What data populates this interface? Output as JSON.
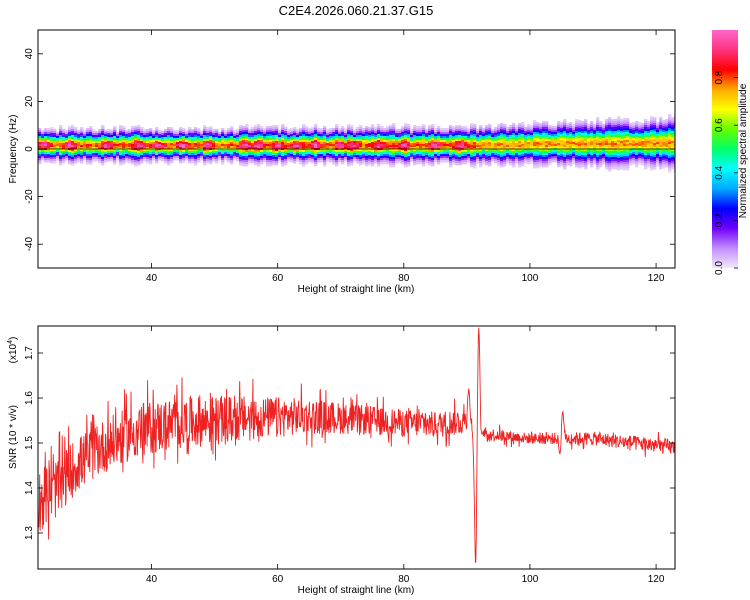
{
  "title": "C2E4.2026.060.21.37.G15",
  "chart_data": [
    {
      "type": "heatmap",
      "xlabel": "Height of straight line (km)",
      "ylabel": "Frequency (Hz)",
      "xlim": [
        22,
        123
      ],
      "ylim": [
        -50,
        50
      ],
      "xticks": [
        40,
        60,
        80,
        100,
        120
      ],
      "yticks": [
        -40,
        -20,
        0,
        20,
        40
      ],
      "grid": false,
      "band": {
        "center_hz": [
          [
            22,
            1.5
          ],
          [
            60,
            1.5
          ],
          [
            91,
            1.5
          ],
          [
            100,
            2.0
          ],
          [
            123,
            2.5
          ]
        ],
        "halfwidth_hz": [
          [
            22,
            4
          ],
          [
            50,
            4
          ],
          [
            91,
            4.5
          ],
          [
            100,
            5
          ],
          [
            123,
            6
          ]
        ]
      },
      "peak_heights_km": [
        23,
        27,
        33,
        38,
        41,
        45,
        49,
        55,
        57,
        60,
        63,
        66,
        70,
        72,
        76,
        80,
        85,
        89
      ],
      "colorbar": {
        "label": "Normalized spectral amplitude",
        "range": [
          0,
          1
        ],
        "ticks": [
          "0.0",
          "0.2",
          "0.4",
          "0.6",
          "0.8"
        ],
        "tick_values": [
          0,
          0.2,
          0.4,
          0.6,
          0.8
        ],
        "colors": [
          "#f2e8f8",
          "#c28cff",
          "#7000ff",
          "#0000ff",
          "#00aaff",
          "#00ffff",
          "#00ff66",
          "#66ff00",
          "#ffff00",
          "#ffaa00",
          "#ff0000",
          "#ff3380",
          "#ff66cc"
        ]
      }
    },
    {
      "type": "line",
      "xlabel": "Height of straight line (km)",
      "ylabel": "SNR (10 * v/v)",
      "scale_label": "(x10",
      "scale_exp": "4",
      "scale_close": ")",
      "xlim": [
        22,
        123
      ],
      "ylim": [
        1.22,
        1.76
      ],
      "xticks": [
        40,
        60,
        80,
        100,
        120
      ],
      "yticks": [
        1.3,
        1.4,
        1.5,
        1.6,
        1.7
      ],
      "series_color": "#ee2222",
      "grid": false,
      "trend": [
        [
          22,
          1.37
        ],
        [
          25,
          1.4
        ],
        [
          28,
          1.45
        ],
        [
          32,
          1.49
        ],
        [
          38,
          1.53
        ],
        [
          45,
          1.545
        ],
        [
          55,
          1.555
        ],
        [
          65,
          1.56
        ],
        [
          75,
          1.55
        ],
        [
          85,
          1.54
        ],
        [
          90,
          1.55
        ],
        [
          93,
          1.52
        ],
        [
          100,
          1.51
        ],
        [
          110,
          1.51
        ],
        [
          123,
          1.49
        ]
      ],
      "spread": [
        [
          22,
          0.07
        ],
        [
          30,
          0.06
        ],
        [
          40,
          0.06
        ],
        [
          50,
          0.055
        ],
        [
          60,
          0.045
        ],
        [
          70,
          0.035
        ],
        [
          80,
          0.03
        ],
        [
          90,
          0.03
        ],
        [
          92,
          0.015
        ],
        [
          100,
          0.012
        ],
        [
          110,
          0.015
        ],
        [
          123,
          0.018
        ]
      ],
      "events": [
        {
          "x": 90.3,
          "y": 1.62
        },
        {
          "x": 91.1,
          "y": 1.5
        },
        {
          "x": 91.4,
          "y": 1.22
        },
        {
          "x": 91.9,
          "y": 1.76
        },
        {
          "x": 92.4,
          "y": 1.52
        },
        {
          "x": 104.8,
          "y": 1.47
        },
        {
          "x": 105.2,
          "y": 1.57
        }
      ]
    }
  ]
}
